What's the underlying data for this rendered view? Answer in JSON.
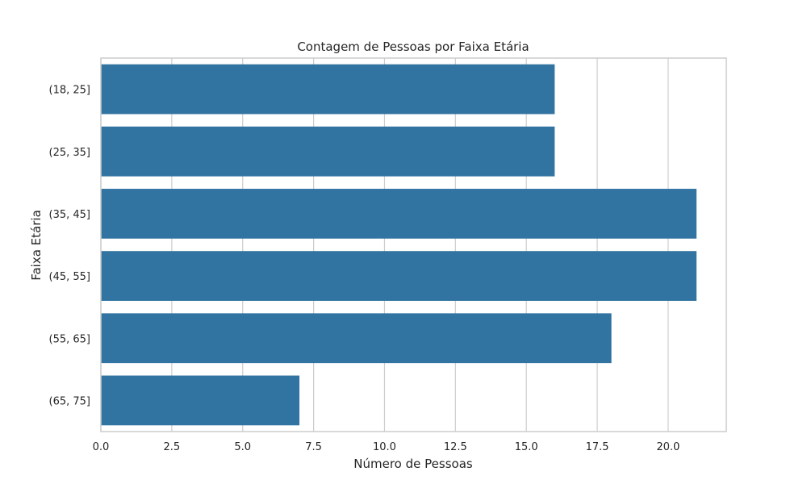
{
  "chart_data": {
    "type": "bar",
    "orientation": "horizontal",
    "title": "Contagem de Pessoas por Faixa Etária",
    "xlabel": "Número de Pessoas",
    "ylabel": "Faixa Etária",
    "categories": [
      "(18, 25]",
      "(25, 35]",
      "(35, 45]",
      "(45, 55]",
      "(55, 65]",
      "(65, 75]"
    ],
    "values": [
      16,
      16,
      21,
      21,
      18,
      7
    ],
    "xlim": [
      0,
      22.05
    ],
    "xticks": [
      0.0,
      2.5,
      5.0,
      7.5,
      10.0,
      12.5,
      15.0,
      17.5,
      20.0
    ],
    "xtick_labels": [
      "0.0",
      "2.5",
      "5.0",
      "7.5",
      "10.0",
      "12.5",
      "15.0",
      "17.5",
      "20.0"
    ],
    "grid": true,
    "colors": {
      "bar": "#3274a1",
      "grid": "#cccccc",
      "spine": "#cccccc",
      "text": "#262626"
    }
  }
}
